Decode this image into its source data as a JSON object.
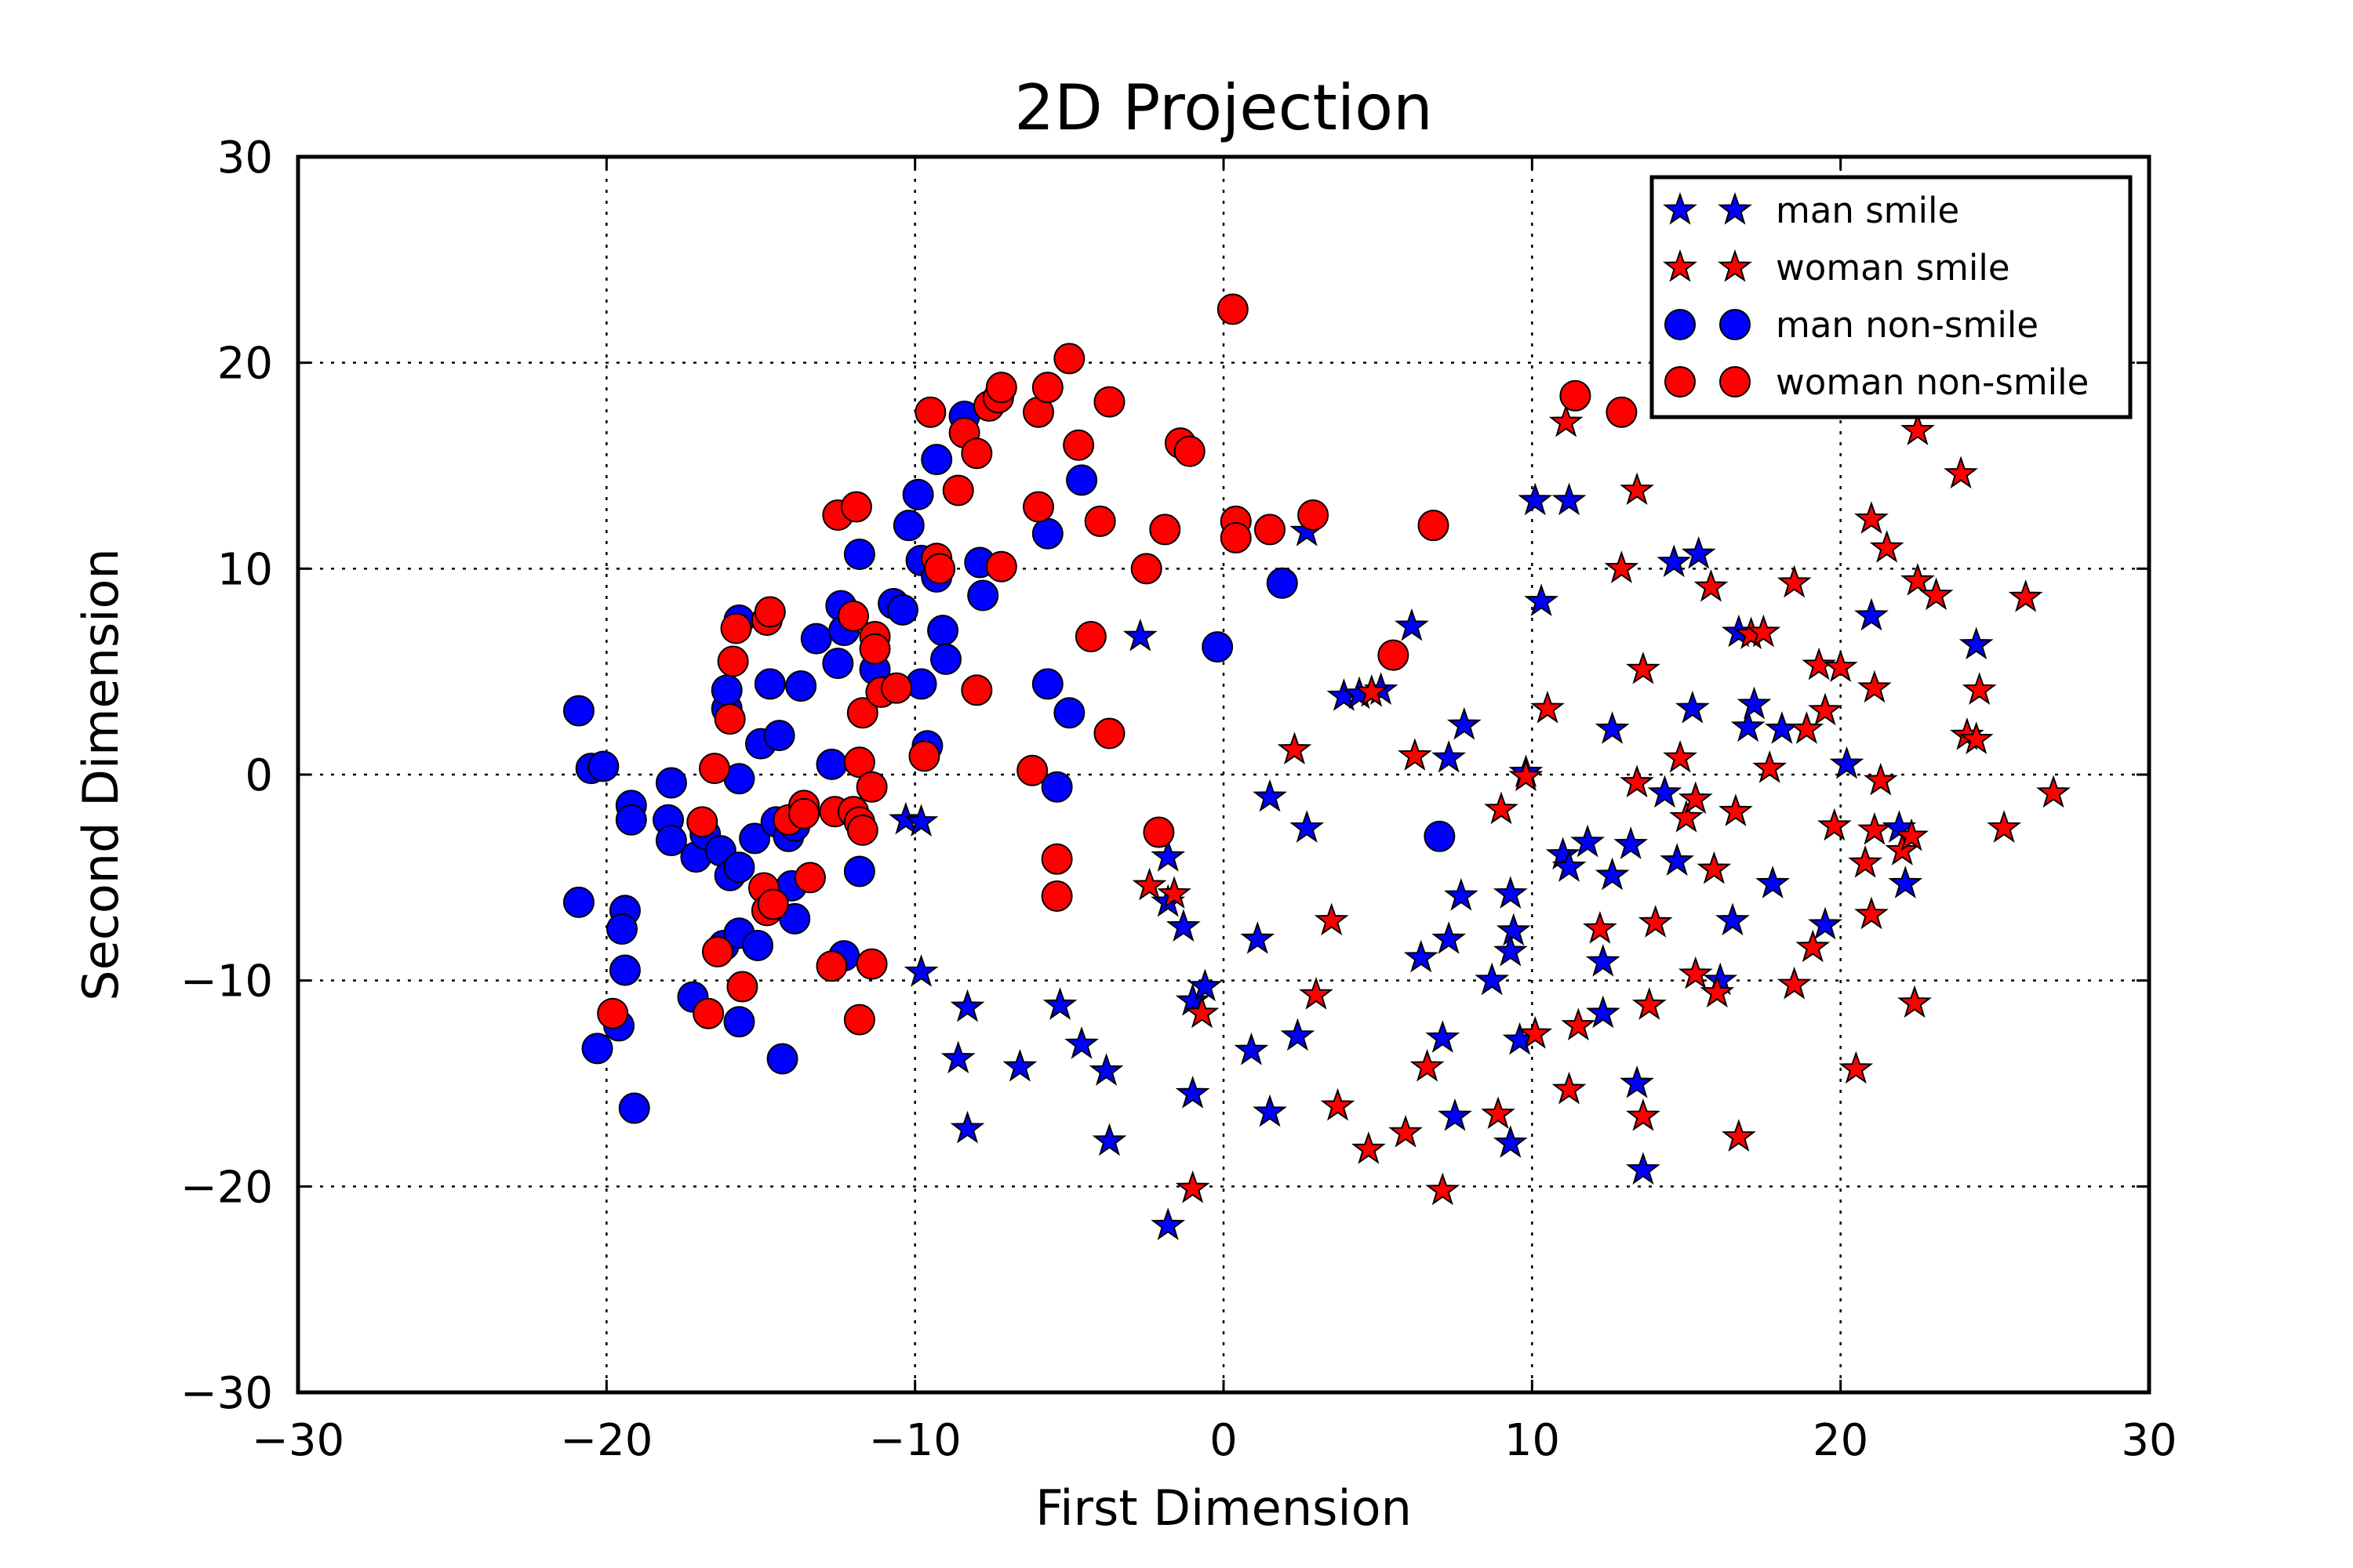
{
  "chart_data": {
    "type": "scatter",
    "title": "2D Projection",
    "xlabel": "First Dimension",
    "ylabel": "Second Dimension",
    "xlim": [
      -30,
      30
    ],
    "ylim": [
      -30,
      30
    ],
    "xticks": [
      -30,
      -20,
      -10,
      0,
      10,
      20,
      30
    ],
    "yticks": [
      -30,
      -20,
      -10,
      0,
      10,
      20,
      30
    ],
    "xtick_labels": [
      "−30",
      "−20",
      "−10",
      "0",
      "10",
      "20",
      "30"
    ],
    "ytick_labels": [
      "−30",
      "−20",
      "−10",
      "0",
      "10",
      "20",
      "30"
    ],
    "grid": true,
    "legend_position": "top-right",
    "series": [
      {
        "name": "man smile",
        "marker": "star",
        "color": "#0000ff",
        "points": [
          [
            -10.3,
            -2.2
          ],
          [
            -9.8,
            -2.3
          ],
          [
            -9.8,
            -9.6
          ],
          [
            -8.3,
            -11.3
          ],
          [
            -8.6,
            -13.8
          ],
          [
            -8.3,
            -17.2
          ],
          [
            -6.6,
            -14.2
          ],
          [
            -5.3,
            -11.2
          ],
          [
            -4.6,
            -13.1
          ],
          [
            -3.8,
            -14.4
          ],
          [
            -3.7,
            -17.8
          ],
          [
            -2.7,
            6.7
          ],
          [
            -1.8,
            -4.0
          ],
          [
            -1.8,
            -6.2
          ],
          [
            -1.3,
            -7.4
          ],
          [
            -1.0,
            -11.0
          ],
          [
            -1.0,
            -15.5
          ],
          [
            -0.6,
            -10.3
          ],
          [
            -1.8,
            -21.9
          ],
          [
            0.9,
            -13.4
          ],
          [
            1.1,
            -8.0
          ],
          [
            1.5,
            -1.1
          ],
          [
            1.5,
            -16.4
          ],
          [
            2.4,
            -12.7
          ],
          [
            2.7,
            -2.6
          ],
          [
            2.7,
            11.8
          ],
          [
            3.9,
            3.8
          ],
          [
            4.4,
            3.9
          ],
          [
            5.1,
            4.1
          ],
          [
            6.1,
            7.2
          ],
          [
            6.4,
            -8.9
          ],
          [
            7.1,
            -12.8
          ],
          [
            7.3,
            -8.0
          ],
          [
            7.5,
            -16.6
          ],
          [
            7.7,
            -5.9
          ],
          [
            7.8,
            2.4
          ],
          [
            7.3,
            0.8
          ],
          [
            8.7,
            -10.0
          ],
          [
            9.3,
            -5.8
          ],
          [
            9.4,
            -7.6
          ],
          [
            9.3,
            -8.6
          ],
          [
            9.6,
            -12.9
          ],
          [
            9.3,
            -17.9
          ],
          [
            9.8,
            0.1
          ],
          [
            10.3,
            8.4
          ],
          [
            10.1,
            13.3
          ],
          [
            11.2,
            13.3
          ],
          [
            11.0,
            -3.9
          ],
          [
            11.2,
            -4.5
          ],
          [
            11.8,
            -3.3
          ],
          [
            12.3,
            -9.1
          ],
          [
            12.3,
            -11.6
          ],
          [
            12.6,
            -4.9
          ],
          [
            12.6,
            2.2
          ],
          [
            13.2,
            -3.4
          ],
          [
            13.4,
            -15.0
          ],
          [
            13.6,
            -19.2
          ],
          [
            14.3,
            -0.9
          ],
          [
            14.6,
            10.3
          ],
          [
            14.7,
            -4.2
          ],
          [
            15.2,
            3.2
          ],
          [
            15.4,
            10.7
          ],
          [
            16.1,
            -10.0
          ],
          [
            16.5,
            -7.1
          ],
          [
            16.7,
            6.9
          ],
          [
            17.0,
            2.3
          ],
          [
            17.2,
            3.4
          ],
          [
            17.8,
            -5.3
          ],
          [
            18.1,
            2.2
          ],
          [
            19.5,
            -7.3
          ],
          [
            20.2,
            0.5
          ],
          [
            21.0,
            7.7
          ],
          [
            21.9,
            -2.6
          ],
          [
            22.1,
            -5.3
          ],
          [
            24.4,
            6.3
          ]
        ]
      },
      {
        "name": "woman smile",
        "marker": "star",
        "color": "#ff0000",
        "points": [
          [
            -2.4,
            -5.4
          ],
          [
            -1.6,
            -5.8
          ],
          [
            -1.0,
            -20.1
          ],
          [
            -0.7,
            -11.6
          ],
          [
            2.3,
            1.2
          ],
          [
            3.0,
            -10.7
          ],
          [
            3.5,
            -7.1
          ],
          [
            3.7,
            -16.1
          ],
          [
            4.7,
            -18.2
          ],
          [
            4.8,
            4.0
          ],
          [
            5.9,
            -17.4
          ],
          [
            6.2,
            0.9
          ],
          [
            6.6,
            -14.2
          ],
          [
            7.1,
            -20.2
          ],
          [
            8.9,
            -16.5
          ],
          [
            9.0,
            -1.7
          ],
          [
            9.8,
            -0.1
          ],
          [
            10.1,
            -12.6
          ],
          [
            10.5,
            3.2
          ],
          [
            11.1,
            17.1
          ],
          [
            11.2,
            -15.3
          ],
          [
            11.5,
            -12.2
          ],
          [
            12.2,
            -7.5
          ],
          [
            12.9,
            10.0
          ],
          [
            13.4,
            -0.4
          ],
          [
            13.4,
            13.8
          ],
          [
            13.6,
            -16.6
          ],
          [
            13.6,
            5.1
          ],
          [
            13.8,
            -11.2
          ],
          [
            14.0,
            -7.2
          ],
          [
            14.8,
            0.8
          ],
          [
            15.0,
            -2.1
          ],
          [
            15.3,
            -1.2
          ],
          [
            15.3,
            -9.7
          ],
          [
            15.8,
            9.1
          ],
          [
            15.9,
            -4.6
          ],
          [
            16.0,
            -10.6
          ],
          [
            16.6,
            -1.8
          ],
          [
            16.7,
            -17.6
          ],
          [
            17.1,
            6.8
          ],
          [
            17.5,
            6.9
          ],
          [
            17.7,
            0.3
          ],
          [
            18.5,
            9.3
          ],
          [
            18.5,
            -10.2
          ],
          [
            18.9,
            2.2
          ],
          [
            19.1,
            -8.4
          ],
          [
            19.3,
            5.3
          ],
          [
            19.5,
            3.1
          ],
          [
            19.8,
            -2.5
          ],
          [
            20.0,
            5.2
          ],
          [
            20.5,
            -14.3
          ],
          [
            20.8,
            -4.3
          ],
          [
            21.0,
            12.4
          ],
          [
            21.0,
            -6.8
          ],
          [
            21.1,
            -2.7
          ],
          [
            21.1,
            4.2
          ],
          [
            21.3,
            -0.3
          ],
          [
            21.5,
            11.0
          ],
          [
            22.0,
            -3.7
          ],
          [
            22.3,
            -3.0
          ],
          [
            22.4,
            -11.1
          ],
          [
            22.5,
            9.4
          ],
          [
            22.5,
            16.7
          ],
          [
            23.1,
            8.7
          ],
          [
            23.9,
            14.6
          ],
          [
            24.1,
            1.9
          ],
          [
            24.4,
            1.7
          ],
          [
            24.5,
            4.1
          ],
          [
            25.3,
            -2.6
          ],
          [
            26.0,
            8.6
          ],
          [
            26.9,
            -0.9
          ]
        ]
      },
      {
        "name": "man non-smile",
        "marker": "circle",
        "color": "#0000ff",
        "points": [
          [
            -20.9,
            3.1
          ],
          [
            -20.5,
            0.3
          ],
          [
            -20.1,
            0.4
          ],
          [
            -20.9,
            -6.2
          ],
          [
            -20.3,
            -13.3
          ],
          [
            -19.6,
            -12.2
          ],
          [
            -19.4,
            -6.6
          ],
          [
            -19.5,
            -7.5
          ],
          [
            -19.4,
            -9.5
          ],
          [
            -19.2,
            -1.5
          ],
          [
            -19.2,
            -2.2
          ],
          [
            -19.1,
            -16.2
          ],
          [
            -17.9,
            -0.4
          ],
          [
            -18.0,
            -2.2
          ],
          [
            -17.9,
            -3.2
          ],
          [
            -17.1,
            -4.0
          ],
          [
            -17.2,
            -10.8
          ],
          [
            -16.8,
            -2.9
          ],
          [
            -16.3,
            -3.7
          ],
          [
            -16.2,
            -8.3
          ],
          [
            -16.1,
            3.2
          ],
          [
            -16.1,
            4.1
          ],
          [
            -16.0,
            -4.9
          ],
          [
            -15.7,
            7.5
          ],
          [
            -15.7,
            -0.2
          ],
          [
            -15.7,
            -4.5
          ],
          [
            -15.7,
            -7.7
          ],
          [
            -15.7,
            -12.0
          ],
          [
            -15.2,
            -3.1
          ],
          [
            -15.1,
            -8.3
          ],
          [
            -15.0,
            1.5
          ],
          [
            -14.7,
            4.4
          ],
          [
            -14.5,
            -2.3
          ],
          [
            -14.4,
            1.9
          ],
          [
            -14.3,
            -13.8
          ],
          [
            -14.1,
            -3.0
          ],
          [
            -14.0,
            -5.4
          ],
          [
            -13.9,
            -7.0
          ],
          [
            -13.9,
            -2.5
          ],
          [
            -13.7,
            4.3
          ],
          [
            -13.2,
            6.6
          ],
          [
            -12.7,
            0.5
          ],
          [
            -12.5,
            5.4
          ],
          [
            -12.4,
            8.2
          ],
          [
            -12.3,
            7.0
          ],
          [
            -12.3,
            -8.8
          ],
          [
            -11.8,
            -4.7
          ],
          [
            -11.8,
            10.7
          ],
          [
            -11.3,
            5.1
          ],
          [
            -10.7,
            8.3
          ],
          [
            -10.4,
            8.0
          ],
          [
            -10.2,
            12.1
          ],
          [
            -9.9,
            13.6
          ],
          [
            -9.8,
            10.4
          ],
          [
            -9.8,
            4.4
          ],
          [
            -9.6,
            1.4
          ],
          [
            -9.3,
            15.3
          ],
          [
            -9.3,
            9.6
          ],
          [
            -9.1,
            7.0
          ],
          [
            -9.0,
            5.6
          ],
          [
            -8.4,
            17.4
          ],
          [
            -7.9,
            10.3
          ],
          [
            -7.8,
            8.7
          ],
          [
            -5.7,
            11.7
          ],
          [
            -5.7,
            4.4
          ],
          [
            -5.4,
            -0.6
          ],
          [
            -5.0,
            3.0
          ],
          [
            -4.6,
            14.3
          ],
          [
            -0.2,
            6.2
          ],
          [
            1.9,
            9.3
          ],
          [
            7.0,
            -3.0
          ]
        ]
      },
      {
        "name": "woman non-smile",
        "marker": "circle",
        "color": "#ff0000",
        "points": [
          [
            -19.8,
            -11.6
          ],
          [
            -16.9,
            -2.3
          ],
          [
            -16.7,
            -11.6
          ],
          [
            -16.5,
            0.3
          ],
          [
            -16.4,
            -8.6
          ],
          [
            -16.0,
            2.7
          ],
          [
            -15.9,
            5.5
          ],
          [
            -15.8,
            7.1
          ],
          [
            -15.6,
            -10.3
          ],
          [
            -14.9,
            -5.5
          ],
          [
            -14.8,
            -6.6
          ],
          [
            -14.8,
            7.5
          ],
          [
            -14.7,
            7.9
          ],
          [
            -14.6,
            -6.3
          ],
          [
            -14.1,
            -2.2
          ],
          [
            -13.6,
            -1.5
          ],
          [
            -13.6,
            -1.9
          ],
          [
            -13.4,
            -5.0
          ],
          [
            -12.7,
            -9.3
          ],
          [
            -12.6,
            -1.8
          ],
          [
            -12.5,
            12.6
          ],
          [
            -12.0,
            7.7
          ],
          [
            -12.0,
            -1.8
          ],
          [
            -11.9,
            13.0
          ],
          [
            -11.8,
            -2.3
          ],
          [
            -11.8,
            0.6
          ],
          [
            -11.8,
            -11.9
          ],
          [
            -11.7,
            -2.7
          ],
          [
            -11.7,
            3.0
          ],
          [
            -11.4,
            -0.6
          ],
          [
            -11.4,
            -9.2
          ],
          [
            -11.3,
            6.7
          ],
          [
            -11.3,
            6.1
          ],
          [
            -11.1,
            4.0
          ],
          [
            -10.6,
            4.2
          ],
          [
            -9.7,
            0.9
          ],
          [
            -9.5,
            17.6
          ],
          [
            -9.3,
            10.5
          ],
          [
            -9.2,
            10.0
          ],
          [
            -8.6,
            13.8
          ],
          [
            -8.4,
            16.6
          ],
          [
            -8.0,
            15.6
          ],
          [
            -8.0,
            4.1
          ],
          [
            -7.6,
            17.9
          ],
          [
            -7.3,
            18.3
          ],
          [
            -7.2,
            18.8
          ],
          [
            -7.2,
            10.1
          ],
          [
            -6.2,
            0.2
          ],
          [
            -6.0,
            13.0
          ],
          [
            -6.0,
            17.6
          ],
          [
            -5.7,
            18.8
          ],
          [
            -5.4,
            -4.1
          ],
          [
            -5.4,
            -5.9
          ],
          [
            -5.0,
            20.2
          ],
          [
            -4.7,
            16.0
          ],
          [
            -4.3,
            6.7
          ],
          [
            -4.0,
            12.3
          ],
          [
            -3.7,
            18.1
          ],
          [
            -3.7,
            2.0
          ],
          [
            -2.5,
            10.0
          ],
          [
            -2.1,
            -2.8
          ],
          [
            -1.9,
            11.9
          ],
          [
            -1.4,
            16.1
          ],
          [
            -1.1,
            15.7
          ],
          [
            0.3,
            22.6
          ],
          [
            0.4,
            12.3
          ],
          [
            0.4,
            11.5
          ],
          [
            1.5,
            11.9
          ],
          [
            2.9,
            12.6
          ],
          [
            5.5,
            5.8
          ],
          [
            6.8,
            12.1
          ],
          [
            11.4,
            18.4
          ],
          [
            12.9,
            17.6
          ]
        ]
      }
    ]
  }
}
